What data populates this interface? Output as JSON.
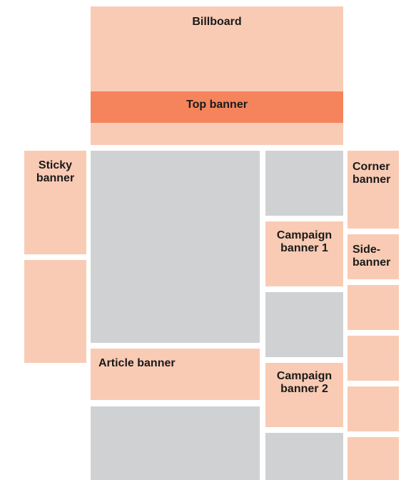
{
  "labels": {
    "billboard": "Billboard",
    "top_banner": "Top banner",
    "sticky_banner": "Sticky\nbanner",
    "corner_banner": "Corner\nbanner",
    "campaign_banner_1": "Campaign\nbanner 1",
    "side_banner": "Side-\nbanner",
    "article_banner": "Article banner",
    "campaign_banner_2": "Campaign\nbanner 2"
  },
  "colors": {
    "ad_light": "#f9cbb4",
    "ad_strong": "#f5845c",
    "content": "#d0d1d3"
  }
}
